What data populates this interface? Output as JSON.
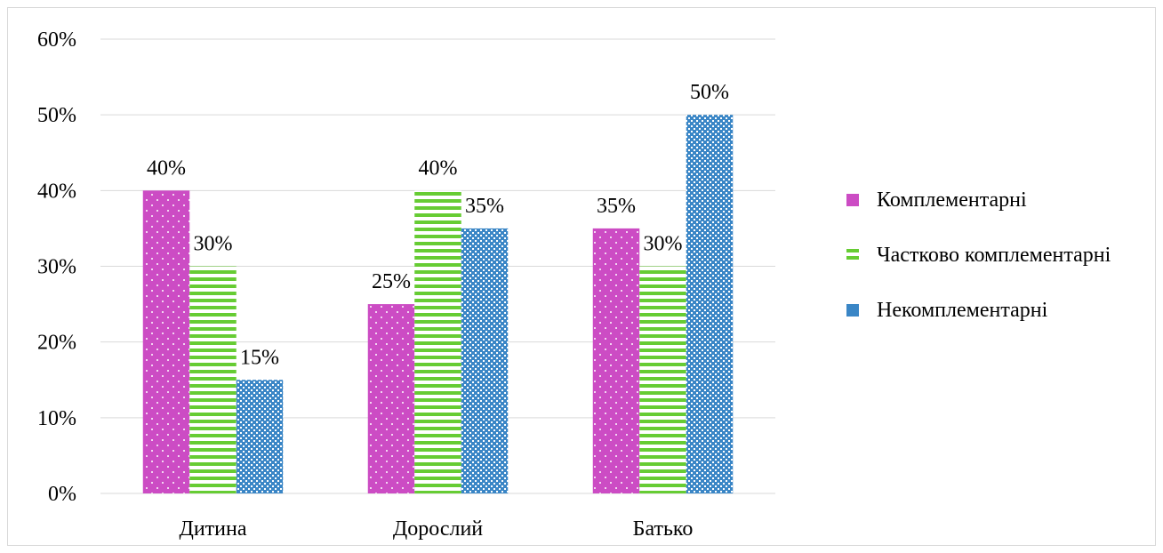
{
  "chart_data": {
    "type": "bar",
    "categories": [
      "Дитина",
      "Дорослий",
      "Батько"
    ],
    "series": [
      {
        "name": "Комплементарні",
        "values": [
          40,
          25,
          35
        ],
        "color": "#cc4cc4",
        "pattern": "dots"
      },
      {
        "name": "Частково комплементарні",
        "values": [
          30,
          40,
          30
        ],
        "color": "#66cc33",
        "pattern": "horizontal-stripes"
      },
      {
        "name": "Некомплементарні",
        "values": [
          15,
          35,
          50
        ],
        "color": "#3a86c6",
        "pattern": "checker"
      }
    ],
    "data_labels": [
      [
        "40%",
        "25%",
        "35%"
      ],
      [
        "30%",
        "40%",
        "30%"
      ],
      [
        "15%",
        "35%",
        "50%"
      ]
    ],
    "y_ticks": [
      "0%",
      "10%",
      "20%",
      "30%",
      "40%",
      "50%",
      "60%"
    ],
    "ylim": [
      0,
      60
    ],
    "grid": true,
    "legend_position": "right"
  }
}
